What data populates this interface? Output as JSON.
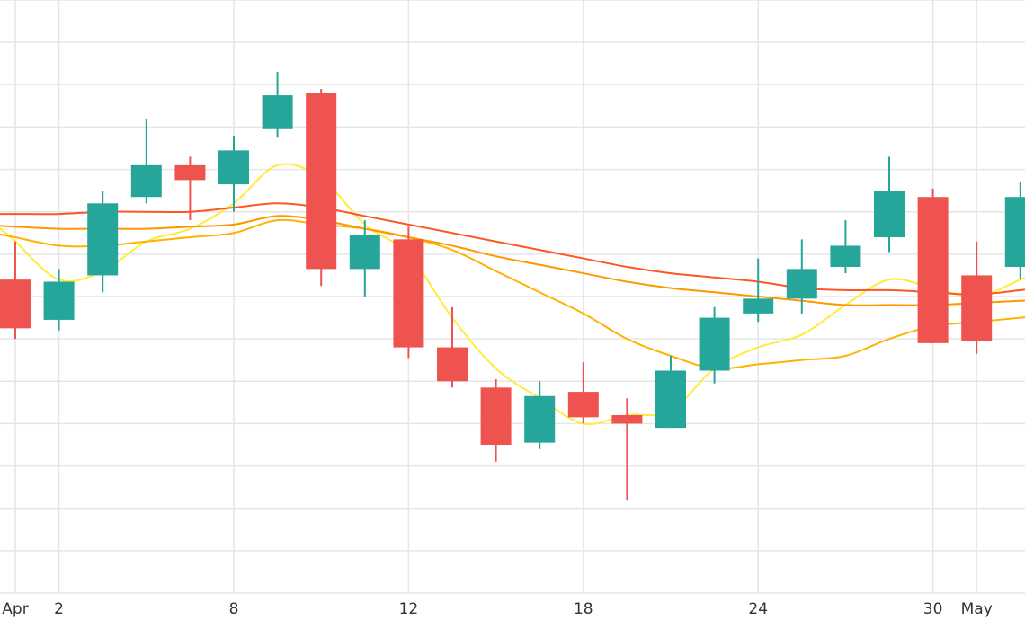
{
  "chart_data": {
    "type": "candlestick",
    "x_ticks": [
      {
        "label": "Apr",
        "index": 0
      },
      {
        "label": "2",
        "index": 1
      },
      {
        "label": "8",
        "index": 5
      },
      {
        "label": "12",
        "index": 9
      },
      {
        "label": "18",
        "index": 13
      },
      {
        "label": "24",
        "index": 17
      },
      {
        "label": "30",
        "index": 21
      },
      {
        "label": "May",
        "index": 22
      }
    ],
    "ylim": [
      0,
      14
    ],
    "grid": true,
    "colors": {
      "up": "#26a69a",
      "down": "#ef5350",
      "grid": "#e6e6e6"
    },
    "candles": [
      {
        "open": 7.4,
        "close": 6.25,
        "high": 8.3,
        "low": 6.0
      },
      {
        "open": 6.45,
        "close": 7.35,
        "high": 7.65,
        "low": 6.2
      },
      {
        "open": 7.5,
        "close": 9.2,
        "high": 9.5,
        "low": 7.1
      },
      {
        "open": 9.35,
        "close": 10.1,
        "high": 11.2,
        "low": 9.2
      },
      {
        "open": 10.1,
        "close": 9.75,
        "high": 10.3,
        "low": 8.8
      },
      {
        "open": 9.65,
        "close": 10.45,
        "high": 10.8,
        "low": 9.0
      },
      {
        "open": 10.95,
        "close": 11.75,
        "high": 12.3,
        "low": 10.75
      },
      {
        "open": 11.8,
        "close": 7.65,
        "high": 11.9,
        "low": 7.25
      },
      {
        "open": 7.65,
        "close": 8.45,
        "high": 8.8,
        "low": 7.0
      },
      {
        "open": 8.35,
        "close": 5.8,
        "high": 8.65,
        "low": 5.55
      },
      {
        "open": 5.8,
        "close": 5.0,
        "high": 6.75,
        "low": 4.85
      },
      {
        "open": 4.85,
        "close": 3.5,
        "high": 5.05,
        "low": 3.1
      },
      {
        "open": 3.55,
        "close": 4.65,
        "high": 5.0,
        "low": 3.4
      },
      {
        "open": 4.75,
        "close": 4.15,
        "high": 5.45,
        "low": 4.0
      },
      {
        "open": 4.2,
        "close": 4.0,
        "high": 4.6,
        "low": 2.2
      },
      {
        "open": 3.9,
        "close": 5.25,
        "high": 5.6,
        "low": 3.9
      },
      {
        "open": 5.25,
        "close": 6.5,
        "high": 6.75,
        "low": 4.95
      },
      {
        "open": 6.6,
        "close": 6.95,
        "high": 7.9,
        "low": 6.4
      },
      {
        "open": 6.95,
        "close": 7.65,
        "high": 8.35,
        "low": 6.6
      },
      {
        "open": 7.7,
        "close": 8.2,
        "high": 8.8,
        "low": 7.55
      },
      {
        "open": 8.4,
        "close": 9.5,
        "high": 10.3,
        "low": 8.05
      },
      {
        "open": 9.35,
        "close": 5.9,
        "high": 9.55,
        "low": 5.9
      },
      {
        "open": 7.5,
        "close": 5.95,
        "high": 8.3,
        "low": 5.65
      },
      {
        "open": 7.7,
        "close": 9.35,
        "high": 9.7,
        "low": 7.4
      }
    ],
    "moving_averages": [
      {
        "color": "#ffeb3b",
        "values": [
          8.3,
          7.4,
          7.6,
          8.3,
          8.6,
          9.2,
          10.1,
          9.8,
          8.7,
          8.0,
          6.5,
          5.3,
          4.6,
          4.0,
          4.2,
          4.3,
          5.3,
          5.8,
          6.1,
          6.8,
          7.4,
          7.2,
          7.0,
          7.4
        ]
      },
      {
        "color": "#ffb300",
        "values": [
          8.4,
          8.2,
          8.2,
          8.3,
          8.4,
          8.5,
          8.8,
          8.7,
          8.6,
          8.4,
          8.1,
          7.6,
          7.1,
          6.6,
          6.0,
          5.6,
          5.3,
          5.4,
          5.5,
          5.6,
          6.0,
          6.3,
          6.4,
          6.5
        ]
      },
      {
        "color": "#ff9800",
        "values": [
          8.65,
          8.6,
          8.6,
          8.6,
          8.65,
          8.7,
          8.9,
          8.8,
          8.6,
          8.4,
          8.2,
          7.95,
          7.75,
          7.55,
          7.35,
          7.2,
          7.1,
          7.0,
          6.9,
          6.8,
          6.8,
          6.8,
          6.85,
          6.9
        ]
      },
      {
        "color": "#ff5722",
        "values": [
          8.95,
          8.95,
          9.0,
          9.0,
          9.0,
          9.1,
          9.2,
          9.1,
          8.9,
          8.7,
          8.5,
          8.3,
          8.1,
          7.9,
          7.7,
          7.55,
          7.45,
          7.35,
          7.2,
          7.15,
          7.15,
          7.1,
          7.05,
          7.15
        ]
      }
    ]
  }
}
